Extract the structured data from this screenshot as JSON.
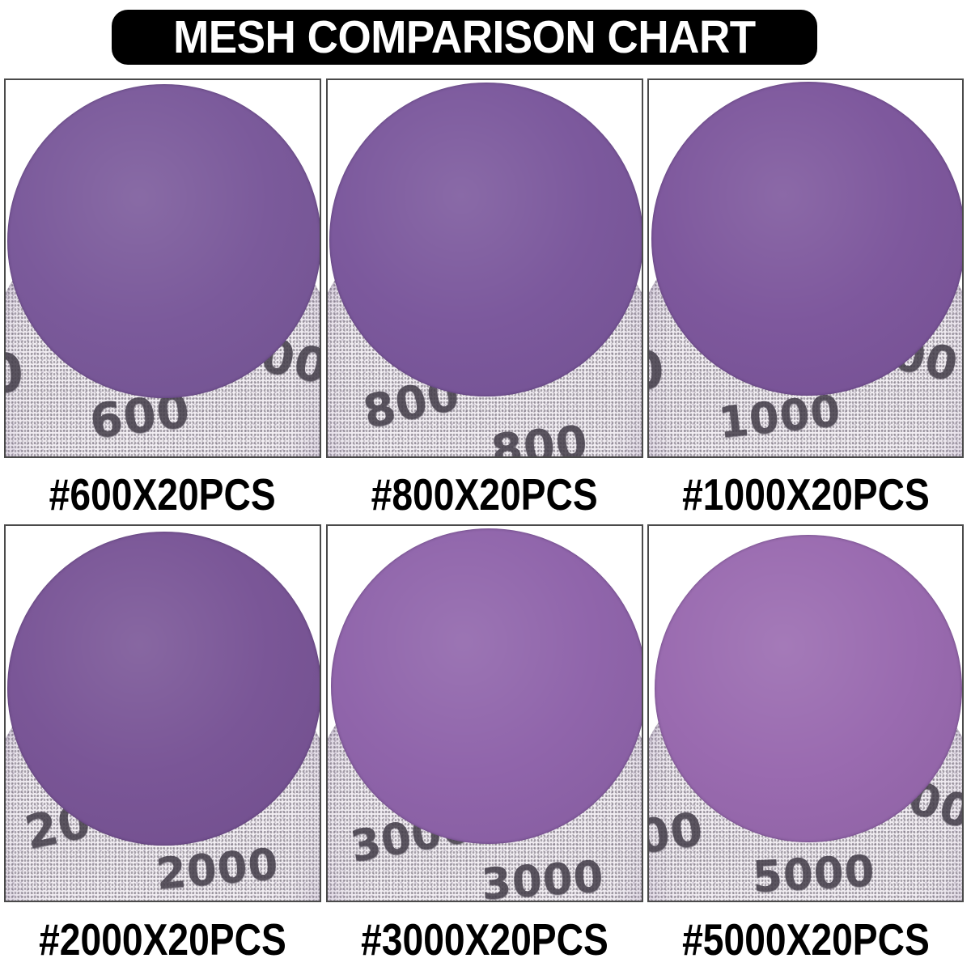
{
  "title": "MESH COMPARISON CHART",
  "colors": {
    "banner_bg": "#000000",
    "banner_text": "#ffffff",
    "label_text": "#000000",
    "cell_border": "#4a4a4a",
    "mesh_base": "#f2eef3",
    "stamp_ink": "#423c48"
  },
  "cells": [
    {
      "grit": "600",
      "label": "#600X20PCS",
      "front_color": "#7b5a9b",
      "stamps": [
        {
          "text": "0"
        },
        {
          "text": "600"
        },
        {
          "text": "00"
        }
      ]
    },
    {
      "grit": "800",
      "label": "#800X20PCS",
      "front_color": "#7c599d",
      "stamps": [
        {
          "text": "800"
        },
        {
          "text": "800"
        }
      ]
    },
    {
      "grit": "1000",
      "label": "#1000X20PCS",
      "front_color": "#7e589d",
      "stamps": [
        {
          "text": "0"
        },
        {
          "text": "1000"
        },
        {
          "text": "00"
        }
      ]
    },
    {
      "grit": "2000",
      "label": "#2000X20PCS",
      "front_color": "#7a5697",
      "stamps": [
        {
          "text": "200"
        },
        {
          "text": "2000"
        }
      ]
    },
    {
      "grit": "3000",
      "label": "#3000X20PCS",
      "front_color": "#9065ab",
      "stamps": [
        {
          "text": "3000"
        },
        {
          "text": "3000"
        }
      ]
    },
    {
      "grit": "5000",
      "label": "#5000X20PCS",
      "front_color": "#9a6bb0",
      "stamps": [
        {
          "text": "00"
        },
        {
          "text": "5000"
        },
        {
          "text": "5000"
        }
      ]
    }
  ]
}
